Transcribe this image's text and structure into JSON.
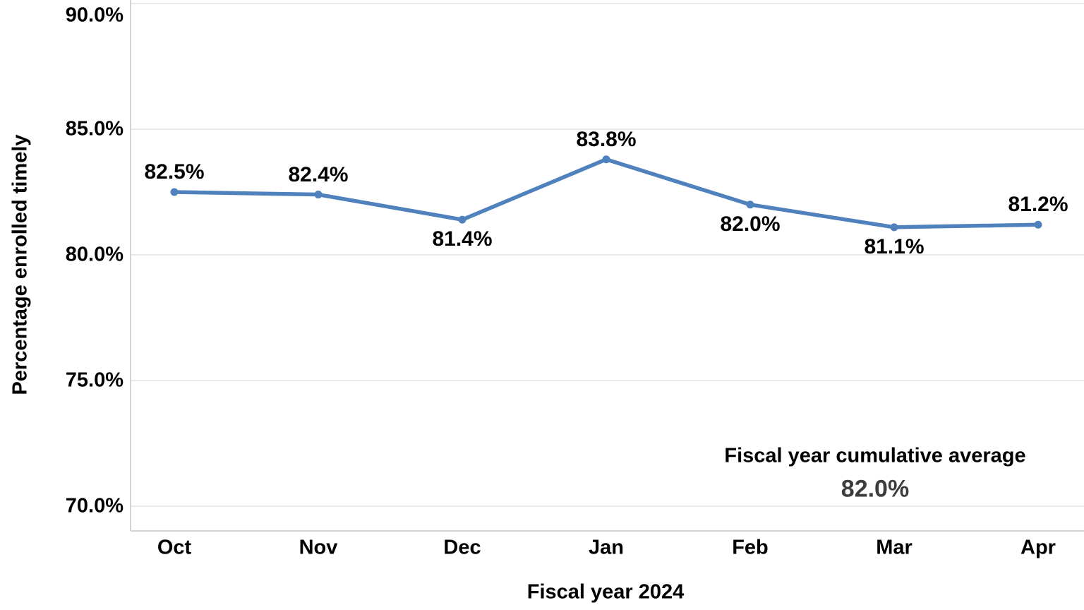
{
  "chart_data": {
    "type": "line",
    "categories": [
      "Oct",
      "Nov",
      "Dec",
      "Jan",
      "Feb",
      "Mar",
      "Apr"
    ],
    "series": [
      {
        "name": "Percentage enrolled timely",
        "values": [
          82.5,
          82.4,
          81.4,
          83.8,
          82.0,
          81.1,
          81.2
        ]
      }
    ],
    "point_labels": [
      "82.5%",
      "82.4%",
      "81.4%",
      "83.8%",
      "82.0%",
      "81.1%",
      "81.2%"
    ],
    "point_label_positions": [
      "above",
      "above",
      "below",
      "above",
      "below",
      "below",
      "above"
    ],
    "xlabel": "Fiscal year 2024",
    "ylabel": "Percentage enrolled timely",
    "y_ticks": [
      90,
      85,
      80,
      75,
      70
    ],
    "y_tick_labels": [
      "90.0%",
      "85.0%",
      "80.0%",
      "75.0%",
      "70.0%"
    ],
    "ylim": [
      69.0,
      90.0
    ],
    "grid": "horizontal",
    "legend": "none",
    "annotation": {
      "label": "Fiscal year cumulative average",
      "value": "82.0%"
    },
    "colors": {
      "line": "#4f81bd",
      "marker": "#4f81bd",
      "gridline": "#e2e2e2",
      "axis_line": "#d4d4d4",
      "text": "#000000",
      "annotation_value": "#3c3c3c",
      "background": "#ffffff"
    }
  }
}
